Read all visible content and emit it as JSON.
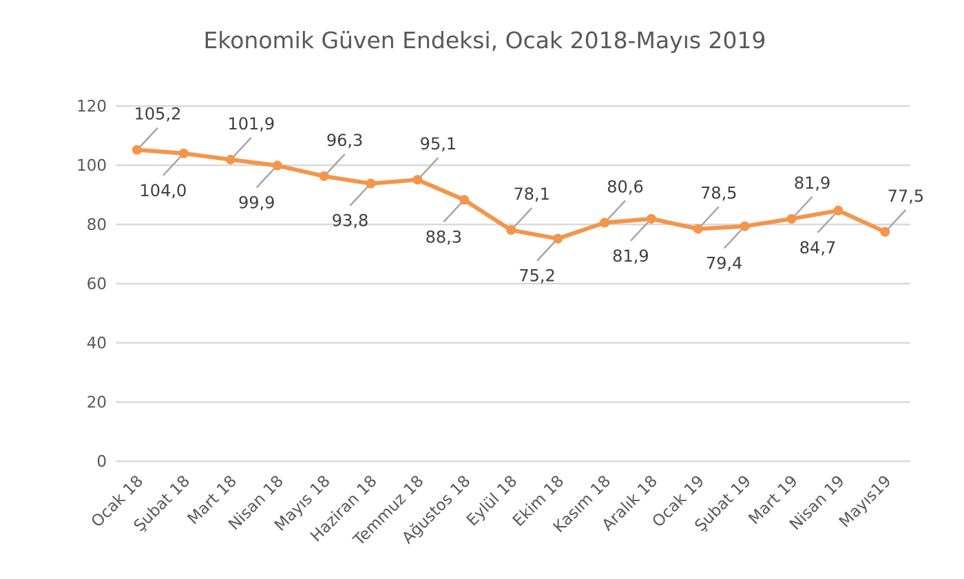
{
  "chart_data": {
    "type": "line",
    "title": "Ekonomik Güven Endeksi, Ocak 2018-Mayıs 2019",
    "xlabel": "",
    "ylabel": "",
    "ylim": [
      0,
      120
    ],
    "yticks": [
      0,
      20,
      40,
      60,
      80,
      100,
      120
    ],
    "grid": true,
    "legend": "none",
    "categories": [
      "Ocak 18",
      "Şubat 18",
      "Mart 18",
      "Nisan 18",
      "Mayıs 18",
      "Haziran 18",
      "Temmuz 18",
      "Ağustos 18",
      "Eylül 18",
      "Ekim 18",
      "Kasım 18",
      "Aralık 18",
      "Ocak 19",
      "Şubat 19",
      "Mart 19",
      "Nisan 19",
      "Mayıs19"
    ],
    "series": [
      {
        "values": [
          105.2,
          104.0,
          101.9,
          99.9,
          96.3,
          93.8,
          95.1,
          88.3,
          78.1,
          75.2,
          80.6,
          81.9,
          78.5,
          79.4,
          81.9,
          84.7,
          77.5
        ],
        "labels": [
          "105,2",
          "104,0",
          "101,9",
          "99,9",
          "96,3",
          "93,8",
          "95,1",
          "88,3",
          "78,1",
          "75,2",
          "80,6",
          "81,9",
          "78,5",
          "79,4",
          "81,9",
          "84,7",
          "77,5"
        ],
        "color": "#f4954a"
      }
    ],
    "colors": {
      "grid": "#d9d9d9",
      "leader": "#a6a6a6",
      "text": "#595959",
      "label": "#404040"
    }
  }
}
